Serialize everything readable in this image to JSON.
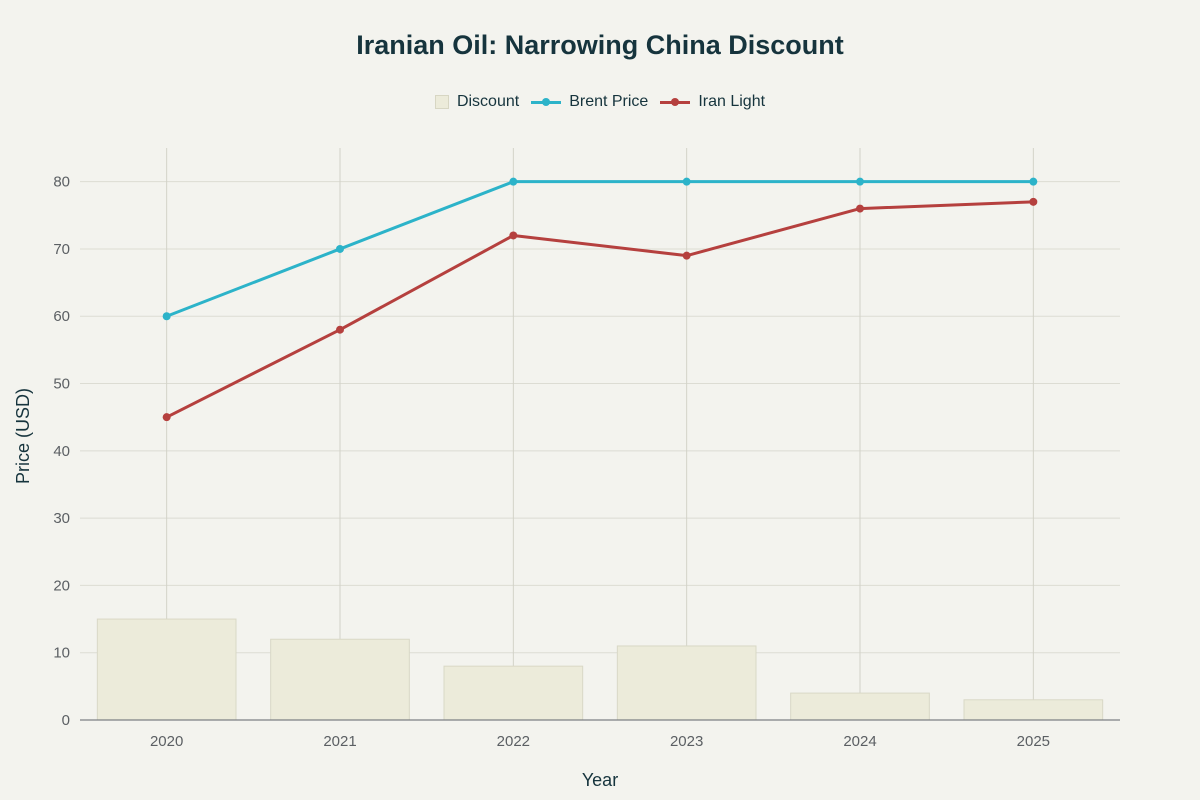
{
  "chart_data": {
    "type": "bar+line",
    "title": "Iranian Oil: Narrowing China Discount",
    "xlabel": "Year",
    "ylabel": "Price (USD)",
    "categories": [
      "2020",
      "2021",
      "2022",
      "2023",
      "2024",
      "2025"
    ],
    "ylim": [
      0,
      85
    ],
    "yticks": [
      0,
      10,
      20,
      30,
      40,
      50,
      60,
      70,
      80
    ],
    "grid": true,
    "legend_position": "top-center",
    "series": [
      {
        "name": "Discount",
        "type": "bar",
        "color": "#ecebda",
        "values": [
          15,
          12,
          8,
          11,
          4,
          3
        ]
      },
      {
        "name": "Brent Price",
        "type": "line",
        "color": "#2cb3c9",
        "values": [
          60,
          70,
          80,
          80,
          80,
          80
        ]
      },
      {
        "name": "Iran Light",
        "type": "line",
        "color": "#b5403e",
        "values": [
          45,
          58,
          72,
          69,
          76,
          77
        ]
      }
    ]
  }
}
